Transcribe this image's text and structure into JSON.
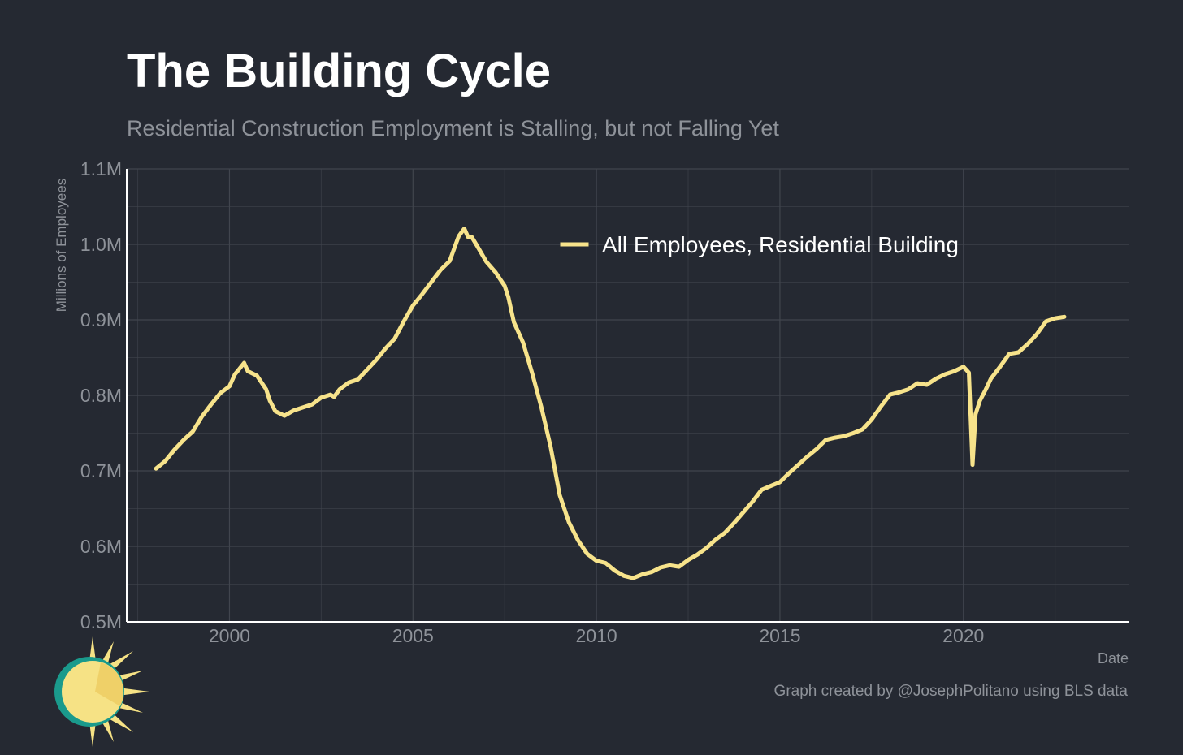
{
  "header": {
    "title": "The Building Cycle",
    "subtitle": "Residential Construction Employment is Stalling, but not Falling Yet"
  },
  "footer": {
    "caption": "Graph created by @JosephPolitano using BLS data"
  },
  "colors": {
    "background": "#252932",
    "line": "#f7e38b",
    "grid": "#41454e",
    "axis": "#ffffff",
    "muted_text": "#8e9299",
    "logo_sun": "#f6e285",
    "logo_ring": "#1a9a8c"
  },
  "icons": {
    "logo": "sun-logo-icon"
  },
  "chart_data": {
    "type": "line",
    "title": "The Building Cycle",
    "subtitle": "Residential Construction Employment is Stalling, but not Falling Yet",
    "xlabel": "Date",
    "ylabel": "Millions of Employees",
    "xlim": [
      1997.2,
      2024.5
    ],
    "ylim": [
      0.5,
      1.1
    ],
    "x_ticks": [
      2000,
      2005,
      2010,
      2015,
      2020
    ],
    "x_tick_labels": [
      "2000",
      "2005",
      "2010",
      "2015",
      "2020"
    ],
    "y_ticks": [
      0.5,
      0.6,
      0.7,
      0.8,
      0.9,
      1.0,
      1.1
    ],
    "y_tick_labels": [
      "0.5M",
      "0.6M",
      "0.7M",
      "0.8M",
      "0.9M",
      "1.0M",
      "1.1M"
    ],
    "grid": true,
    "legend": {
      "position": "top-right"
    },
    "series": [
      {
        "name": "All Employees, Residential Building",
        "x": [
          1998.0,
          1998.25,
          1998.5,
          1998.75,
          1999.0,
          1999.25,
          1999.5,
          1999.75,
          2000.0,
          2000.15,
          2000.25,
          2000.4,
          2000.5,
          2000.75,
          2001.0,
          2001.1,
          2001.25,
          2001.5,
          2001.75,
          2002.0,
          2002.25,
          2002.5,
          2002.75,
          2002.85,
          2003.0,
          2003.25,
          2003.5,
          2003.75,
          2004.0,
          2004.25,
          2004.5,
          2004.75,
          2005.0,
          2005.25,
          2005.5,
          2005.75,
          2006.0,
          2006.15,
          2006.25,
          2006.4,
          2006.5,
          2006.6,
          2006.75,
          2007.0,
          2007.25,
          2007.5,
          2007.6,
          2007.75,
          2008.0,
          2008.25,
          2008.5,
          2008.75,
          2009.0,
          2009.25,
          2009.5,
          2009.75,
          2010.0,
          2010.25,
          2010.5,
          2010.75,
          2011.0,
          2011.25,
          2011.5,
          2011.75,
          2012.0,
          2012.25,
          2012.5,
          2012.75,
          2013.0,
          2013.25,
          2013.5,
          2013.75,
          2014.0,
          2014.25,
          2014.5,
          2014.75,
          2015.0,
          2015.25,
          2015.5,
          2015.75,
          2016.0,
          2016.25,
          2016.5,
          2016.75,
          2017.0,
          2017.25,
          2017.5,
          2017.75,
          2018.0,
          2018.25,
          2018.5,
          2018.75,
          2019.0,
          2019.25,
          2019.5,
          2019.75,
          2020.0,
          2020.15,
          2020.25,
          2020.33,
          2020.45,
          2020.6,
          2020.75,
          2021.0,
          2021.25,
          2021.5,
          2021.75,
          2022.0,
          2022.25,
          2022.5,
          2022.75
        ],
        "y": [
          0.703,
          0.713,
          0.728,
          0.741,
          0.752,
          0.772,
          0.788,
          0.803,
          0.812,
          0.828,
          0.834,
          0.843,
          0.832,
          0.826,
          0.808,
          0.793,
          0.779,
          0.773,
          0.78,
          0.784,
          0.788,
          0.797,
          0.801,
          0.798,
          0.808,
          0.817,
          0.821,
          0.834,
          0.847,
          0.862,
          0.875,
          0.898,
          0.919,
          0.934,
          0.95,
          0.966,
          0.978,
          0.998,
          1.011,
          1.021,
          1.01,
          1.01,
          0.998,
          0.977,
          0.963,
          0.945,
          0.93,
          0.897,
          0.87,
          0.829,
          0.784,
          0.732,
          0.668,
          0.632,
          0.608,
          0.59,
          0.581,
          0.578,
          0.568,
          0.561,
          0.558,
          0.563,
          0.566,
          0.572,
          0.575,
          0.573,
          0.582,
          0.589,
          0.598,
          0.609,
          0.618,
          0.631,
          0.645,
          0.659,
          0.675,
          0.68,
          0.685,
          0.697,
          0.708,
          0.719,
          0.729,
          0.741,
          0.744,
          0.746,
          0.75,
          0.755,
          0.768,
          0.785,
          0.801,
          0.804,
          0.808,
          0.816,
          0.814,
          0.822,
          0.828,
          0.832,
          0.838,
          0.83,
          0.708,
          0.775,
          0.793,
          0.807,
          0.822,
          0.838,
          0.855,
          0.857,
          0.868,
          0.881,
          0.898,
          0.902,
          0.904
        ]
      }
    ]
  }
}
